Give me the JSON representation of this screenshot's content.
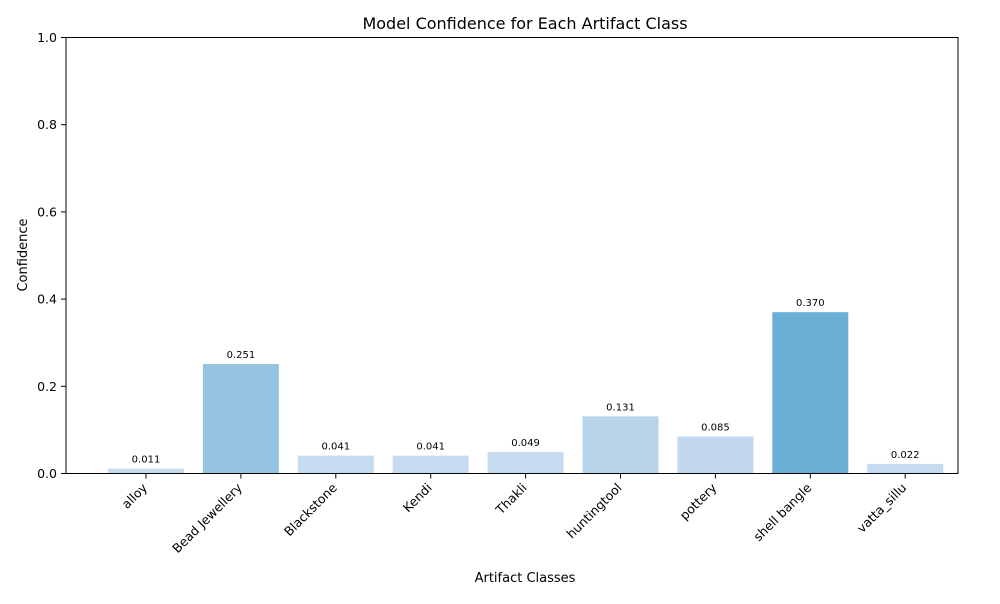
{
  "chart_data": {
    "type": "bar",
    "title": "Model Confidence for Each Artifact Class",
    "xlabel": "Artifact Classes",
    "ylabel": "Confidence",
    "categories": [
      "alloy",
      "Bead Jewellery",
      "Blackstone",
      "Kendi",
      "Thakli",
      "huntingtool",
      "pottery",
      "shell bangle",
      "vatta_sillu"
    ],
    "values": [
      0.011,
      0.251,
      0.041,
      0.041,
      0.049,
      0.131,
      0.085,
      0.37,
      0.022
    ],
    "value_labels": [
      "0.011",
      "0.251",
      "0.041",
      "0.041",
      "0.049",
      "0.131",
      "0.085",
      "0.370",
      "0.022"
    ],
    "ylim": [
      0,
      1.0
    ],
    "yticks": [
      0.0,
      0.2,
      0.4,
      0.6,
      0.8,
      1.0
    ],
    "ytick_labels": [
      "0.0",
      "0.2",
      "0.4",
      "0.6",
      "0.8",
      "1.0"
    ],
    "bar_colors": [
      "#c6dbef",
      "#94c4df",
      "#c6dbef",
      "#c6dbef",
      "#c6dbef",
      "#b7d4ea",
      "#c2d8ee",
      "#6aaed6",
      "#c6dbef"
    ],
    "grid": false,
    "legend": "none"
  }
}
